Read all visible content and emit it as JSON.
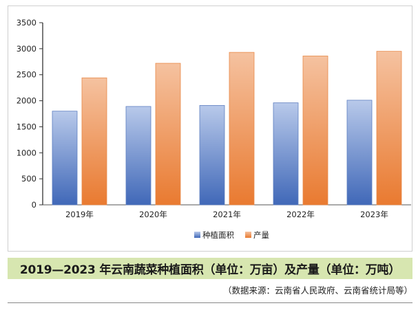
{
  "chart_data": {
    "type": "bar",
    "categories": [
      "2019年",
      "2020年",
      "2021年",
      "2022年",
      "2023年"
    ],
    "series": [
      {
        "name": "种植面积",
        "values": [
          1800,
          1890,
          1910,
          1960,
          2010
        ],
        "color": "#4a74c4"
      },
      {
        "name": "产量",
        "values": [
          2440,
          2720,
          2930,
          2860,
          2950
        ],
        "color": "#ee8a48"
      }
    ],
    "ylim": [
      0,
      3500
    ],
    "yticks": [
      0,
      500,
      1000,
      1500,
      2000,
      2500,
      3000,
      3500
    ],
    "grid": false,
    "legend": "bottom"
  },
  "caption": "2019—2023 年云南蔬菜种植面积（单位：万亩）及产量（单位：万吨）",
  "source_note": "（数据来源：云南省人民政府、云南省统计局等）"
}
